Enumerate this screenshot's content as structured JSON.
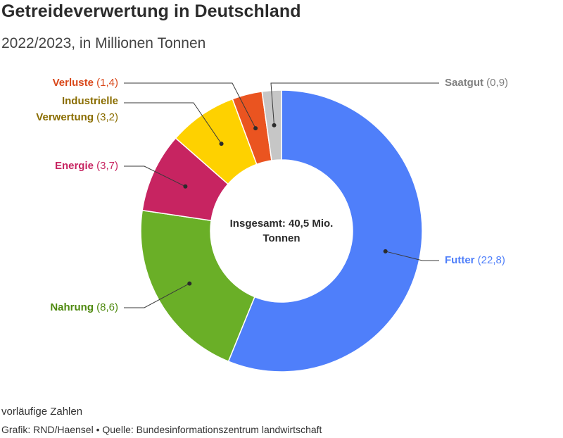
{
  "title": "Getreideverwertung in Deutschland",
  "subtitle": "2022/2023, in Millionen Tonnen",
  "center": [
    "Insgesamt: 40,5 Mio.",
    "Tonnen"
  ],
  "note": "vorläufige Zahlen",
  "credit": "Grafik: RND/Haensel • Quelle: Bundesinformationszentrum landwirtschaft",
  "chart_data": {
    "type": "pie",
    "donut": true,
    "title": "Getreideverwertung in Deutschland",
    "subtitle": "2022/2023, in Millionen Tonnen",
    "total_label": "Insgesamt: 40,5 Mio. Tonnen",
    "slices": [
      {
        "name": "Futter",
        "value": 22.8,
        "value_label": "22,8",
        "color": "#4f7ffa"
      },
      {
        "name": "Nahrung",
        "value": 8.6,
        "value_label": "8,6",
        "color": "#6aaf27",
        "label_color": "#4f8a10"
      },
      {
        "name": "Energie",
        "value": 3.7,
        "value_label": "3,7",
        "color": "#c72461"
      },
      {
        "name": "Industrielle Verwertung",
        "name_lines": [
          "Industrielle",
          "Verwertung"
        ],
        "value": 3.2,
        "value_label": "3,2",
        "color": "#fed100",
        "label_color": "#8a6d00"
      },
      {
        "name": "Verluste",
        "value": 1.4,
        "value_label": "1,4",
        "color": "#ea5420",
        "label_color": "#d9481a"
      },
      {
        "name": "Saatgut",
        "value": 0.9,
        "value_label": "0,9",
        "color": "#c6c6c6",
        "label_color": "#808080"
      }
    ]
  }
}
